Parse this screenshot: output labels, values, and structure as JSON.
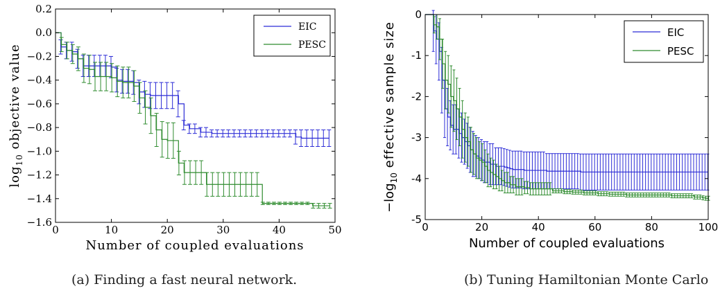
{
  "chart_data": [
    {
      "type": "line",
      "caption": "(a) Finding a fast neural network.",
      "xlabel": "Number of coupled evaluations",
      "ylabel_prefix": "log",
      "ylabel_sub": "10",
      "ylabel_suffix": " objective value",
      "xlim": [
        0,
        50
      ],
      "ylim": [
        -1.6,
        0.2
      ],
      "xticks": [
        "0",
        "10",
        "20",
        "30",
        "40",
        "50"
      ],
      "yticks": [
        "0.2",
        "0.0",
        "−0.2",
        "−0.4",
        "−0.6",
        "−0.8",
        "−1.0",
        "−1.2",
        "−1.4",
        "−1.6"
      ],
      "legend": "top-right",
      "grid": false,
      "series": [
        {
          "name": "EIC",
          "color": "#2b2bd6",
          "x": [
            0,
            1,
            2,
            3,
            4,
            5,
            6,
            7,
            8,
            9,
            10,
            11,
            12,
            13,
            14,
            15,
            16,
            17,
            18,
            19,
            20,
            21,
            22,
            23,
            24,
            25,
            26,
            27,
            28,
            29,
            30,
            31,
            32,
            33,
            34,
            35,
            36,
            37,
            38,
            39,
            40,
            41,
            42,
            43,
            44,
            45,
            46,
            47,
            48,
            49
          ],
          "y": [
            0,
            -0.12,
            -0.15,
            -0.16,
            -0.22,
            -0.28,
            -0.28,
            -0.28,
            -0.28,
            -0.28,
            -0.29,
            -0.4,
            -0.41,
            -0.41,
            -0.42,
            -0.5,
            -0.52,
            -0.53,
            -0.53,
            -0.53,
            -0.53,
            -0.53,
            -0.6,
            -0.78,
            -0.81,
            -0.81,
            -0.84,
            -0.84,
            -0.85,
            -0.85,
            -0.85,
            -0.85,
            -0.85,
            -0.85,
            -0.85,
            -0.85,
            -0.85,
            -0.85,
            -0.85,
            -0.85,
            -0.85,
            -0.85,
            -0.85,
            -0.88,
            -0.89,
            -0.89,
            -0.89,
            -0.89,
            -0.89,
            -0.89
          ],
          "err": [
            0,
            0.06,
            0.07,
            0.08,
            0.08,
            0.09,
            0.09,
            0.09,
            0.09,
            0.09,
            0.09,
            0.1,
            0.1,
            0.1,
            0.1,
            0.1,
            0.11,
            0.11,
            0.11,
            0.11,
            0.11,
            0.11,
            0.11,
            0.04,
            0.04,
            0.04,
            0.04,
            0.04,
            0.03,
            0.03,
            0.03,
            0.03,
            0.03,
            0.03,
            0.03,
            0.03,
            0.03,
            0.03,
            0.03,
            0.03,
            0.03,
            0.03,
            0.03,
            0.06,
            0.07,
            0.07,
            0.07,
            0.07,
            0.07,
            0.07
          ]
        },
        {
          "name": "PESC",
          "color": "#2e8b2e",
          "x": [
            0,
            1,
            2,
            3,
            4,
            5,
            6,
            7,
            8,
            9,
            10,
            11,
            12,
            13,
            14,
            15,
            16,
            17,
            18,
            19,
            20,
            21,
            22,
            23,
            24,
            25,
            26,
            27,
            28,
            29,
            30,
            31,
            32,
            33,
            34,
            35,
            36,
            37,
            38,
            39,
            40,
            41,
            42,
            43,
            44,
            45,
            46,
            47,
            48,
            49
          ],
          "y": [
            0,
            -0.1,
            -0.15,
            -0.18,
            -0.22,
            -0.3,
            -0.31,
            -0.37,
            -0.37,
            -0.37,
            -0.38,
            -0.41,
            -0.42,
            -0.42,
            -0.45,
            -0.55,
            -0.63,
            -0.7,
            -0.82,
            -0.9,
            -0.91,
            -0.91,
            -1.1,
            -1.18,
            -1.18,
            -1.18,
            -1.18,
            -1.28,
            -1.28,
            -1.28,
            -1.28,
            -1.28,
            -1.28,
            -1.28,
            -1.28,
            -1.28,
            -1.28,
            -1.44,
            -1.44,
            -1.44,
            -1.44,
            -1.44,
            -1.44,
            -1.44,
            -1.44,
            -1.44,
            -1.46,
            -1.46,
            -1.46,
            -1.46
          ],
          "err": [
            0,
            0.06,
            0.07,
            0.08,
            0.1,
            0.12,
            0.12,
            0.12,
            0.12,
            0.12,
            0.12,
            0.13,
            0.13,
            0.13,
            0.13,
            0.13,
            0.14,
            0.15,
            0.14,
            0.15,
            0.15,
            0.15,
            0.1,
            0.1,
            0.1,
            0.1,
            0.1,
            0.1,
            0.1,
            0.1,
            0.1,
            0.1,
            0.1,
            0.1,
            0.1,
            0.1,
            0.1,
            0.01,
            0.01,
            0.01,
            0.01,
            0.01,
            0.01,
            0.01,
            0.01,
            0.01,
            0.02,
            0.02,
            0.02,
            0.02
          ]
        }
      ]
    },
    {
      "type": "line",
      "caption": "(b) Tuning Hamiltonian Monte Carlo",
      "xlabel": "Number of coupled evaluations",
      "ylabel_prefix": "−log",
      "ylabel_sub": "10",
      "ylabel_suffix": " effective sample size",
      "xlim": [
        0,
        100
      ],
      "ylim": [
        -5,
        0
      ],
      "xticks": [
        "0",
        "20",
        "40",
        "60",
        "80",
        "100"
      ],
      "yticks": [
        "0",
        "-1",
        "-2",
        "-3",
        "-4",
        "-5"
      ],
      "legend": "top-right",
      "grid": false,
      "series": [
        {
          "name": "EIC",
          "color": "#2b2bd6",
          "x": [
            0,
            1,
            2,
            3,
            4,
            5,
            6,
            7,
            8,
            9,
            10,
            11,
            12,
            13,
            14,
            15,
            16,
            17,
            18,
            19,
            20,
            21,
            22,
            23,
            24,
            25,
            26,
            27,
            28,
            29,
            30,
            31,
            32,
            33,
            34,
            35,
            36,
            37,
            38,
            39,
            40,
            41,
            42,
            43,
            44,
            45,
            46,
            47,
            48,
            49,
            50,
            51,
            52,
            53,
            54,
            55,
            56,
            57,
            58,
            59,
            60,
            61,
            62,
            63,
            64,
            65,
            66,
            67,
            68,
            69,
            70,
            71,
            72,
            73,
            74,
            75,
            76,
            77,
            78,
            79,
            80,
            81,
            82,
            83,
            84,
            85,
            86,
            87,
            88,
            89,
            90,
            91,
            92,
            93,
            94,
            95,
            96,
            97,
            98,
            99,
            100
          ],
          "y": [
            0,
            0,
            0,
            -0.4,
            -0.6,
            -0.9,
            -1.6,
            -2.3,
            -2.5,
            -2.7,
            -2.8,
            -2.8,
            -2.9,
            -3.0,
            -3.1,
            -3.2,
            -3.3,
            -3.4,
            -3.45,
            -3.5,
            -3.55,
            -3.6,
            -3.6,
            -3.65,
            -3.65,
            -3.7,
            -3.7,
            -3.7,
            -3.72,
            -3.74,
            -3.76,
            -3.78,
            -3.78,
            -3.78,
            -3.78,
            -3.8,
            -3.8,
            -3.8,
            -3.8,
            -3.8,
            -3.8,
            -3.8,
            -3.8,
            -3.82,
            -3.82,
            -3.82,
            -3.82,
            -3.82,
            -3.82,
            -3.82,
            -3.82,
            -3.82,
            -3.82,
            -3.82,
            -3.82,
            -3.84,
            -3.84,
            -3.84,
            -3.84,
            -3.84,
            -3.84,
            -3.84,
            -3.84,
            -3.84,
            -3.84,
            -3.84,
            -3.84,
            -3.84,
            -3.84,
            -3.84,
            -3.84,
            -3.84,
            -3.84,
            -3.84,
            -3.84,
            -3.84,
            -3.84,
            -3.84,
            -3.84,
            -3.84,
            -3.84,
            -3.84,
            -3.84,
            -3.84,
            -3.84,
            -3.84,
            -3.84,
            -3.84,
            -3.84,
            -3.84,
            -3.84,
            -3.84,
            -3.84,
            -3.84,
            -3.84,
            -3.84,
            -3.84,
            -3.84,
            -3.84,
            -3.84,
            -3.84
          ],
          "err": [
            0,
            0,
            0,
            0.5,
            0.6,
            0.7,
            0.8,
            0.7,
            0.7,
            0.6,
            0.6,
            0.6,
            0.6,
            0.6,
            0.55,
            0.55,
            0.55,
            0.55,
            0.5,
            0.5,
            0.5,
            0.5,
            0.5,
            0.5,
            0.5,
            0.45,
            0.45,
            0.45,
            0.45,
            0.45,
            0.45,
            0.45,
            0.45,
            0.45,
            0.45,
            0.45,
            0.45,
            0.45,
            0.45,
            0.45,
            0.45,
            0.45,
            0.45,
            0.43,
            0.43,
            0.43,
            0.43,
            0.43,
            0.43,
            0.43,
            0.43,
            0.43,
            0.43,
            0.43,
            0.43,
            0.44,
            0.44,
            0.44,
            0.44,
            0.44,
            0.44,
            0.44,
            0.44,
            0.44,
            0.44,
            0.44,
            0.44,
            0.44,
            0.44,
            0.44,
            0.44,
            0.44,
            0.44,
            0.44,
            0.44,
            0.44,
            0.44,
            0.44,
            0.44,
            0.44,
            0.44,
            0.44,
            0.44,
            0.44,
            0.44,
            0.44,
            0.44,
            0.44,
            0.44,
            0.44,
            0.44,
            0.44,
            0.44,
            0.44,
            0.44,
            0.44,
            0.44,
            0.44,
            0.44,
            0.44,
            0.44
          ]
        },
        {
          "name": "PESC",
          "color": "#2e8b2e",
          "x": [
            0,
            1,
            2,
            3,
            4,
            5,
            6,
            7,
            8,
            9,
            10,
            11,
            12,
            13,
            14,
            15,
            16,
            17,
            18,
            19,
            20,
            21,
            22,
            23,
            24,
            25,
            26,
            27,
            28,
            29,
            30,
            31,
            32,
            33,
            34,
            35,
            36,
            37,
            38,
            39,
            40,
            41,
            42,
            43,
            44,
            45,
            46,
            47,
            48,
            49,
            50,
            51,
            52,
            53,
            54,
            55,
            56,
            57,
            58,
            59,
            60,
            61,
            62,
            63,
            64,
            65,
            66,
            67,
            68,
            69,
            70,
            71,
            72,
            73,
            74,
            75,
            76,
            77,
            78,
            79,
            80,
            81,
            82,
            83,
            84,
            85,
            86,
            87,
            88,
            89,
            90,
            91,
            92,
            93,
            94,
            95,
            96,
            97,
            98,
            99,
            100
          ],
          "y": [
            0,
            0,
            0,
            -0.25,
            -0.3,
            -0.6,
            -1.2,
            -1.6,
            -1.7,
            -2.0,
            -2.1,
            -2.3,
            -2.5,
            -2.8,
            -3.0,
            -3.1,
            -3.3,
            -3.4,
            -3.5,
            -3.55,
            -3.6,
            -3.7,
            -3.8,
            -3.85,
            -3.9,
            -3.95,
            -4.0,
            -4.05,
            -4.1,
            -4.1,
            -4.15,
            -4.15,
            -4.2,
            -4.2,
            -4.2,
            -4.22,
            -4.22,
            -4.25,
            -4.25,
            -4.25,
            -4.25,
            -4.25,
            -4.25,
            -4.25,
            -4.25,
            -4.3,
            -4.3,
            -4.3,
            -4.3,
            -4.32,
            -4.32,
            -4.32,
            -4.33,
            -4.33,
            -4.33,
            -4.33,
            -4.35,
            -4.35,
            -4.35,
            -4.35,
            -4.35,
            -4.37,
            -4.37,
            -4.37,
            -4.37,
            -4.38,
            -4.38,
            -4.38,
            -4.38,
            -4.38,
            -4.38,
            -4.4,
            -4.4,
            -4.4,
            -4.4,
            -4.4,
            -4.4,
            -4.4,
            -4.4,
            -4.4,
            -4.4,
            -4.4,
            -4.4,
            -4.4,
            -4.4,
            -4.4,
            -4.4,
            -4.42,
            -4.42,
            -4.42,
            -4.42,
            -4.42,
            -4.42,
            -4.42,
            -4.42,
            -4.45,
            -4.45,
            -4.45,
            -4.47,
            -4.48,
            -4.48
          ],
          "err": [
            0,
            0,
            0,
            0.2,
            0.3,
            0.5,
            0.6,
            0.7,
            0.7,
            0.75,
            0.75,
            0.75,
            0.7,
            0.7,
            0.6,
            0.6,
            0.55,
            0.5,
            0.5,
            0.45,
            0.45,
            0.4,
            0.4,
            0.35,
            0.35,
            0.3,
            0.3,
            0.25,
            0.25,
            0.25,
            0.2,
            0.2,
            0.2,
            0.2,
            0.2,
            0.15,
            0.15,
            0.15,
            0.15,
            0.15,
            0.15,
            0.15,
            0.15,
            0.15,
            0.15,
            0.05,
            0.05,
            0.05,
            0.05,
            0.05,
            0.05,
            0.05,
            0.05,
            0.05,
            0.05,
            0.05,
            0.05,
            0.05,
            0.05,
            0.05,
            0.05,
            0.05,
            0.05,
            0.05,
            0.05,
            0.05,
            0.05,
            0.05,
            0.05,
            0.05,
            0.05,
            0.05,
            0.05,
            0.05,
            0.05,
            0.05,
            0.05,
            0.05,
            0.05,
            0.05,
            0.05,
            0.05,
            0.05,
            0.05,
            0.05,
            0.05,
            0.05,
            0.05,
            0.05,
            0.05,
            0.05,
            0.05,
            0.05,
            0.05,
            0.05,
            0.05,
            0.05,
            0.05,
            0.05,
            0.05,
            0.05
          ]
        }
      ]
    }
  ]
}
